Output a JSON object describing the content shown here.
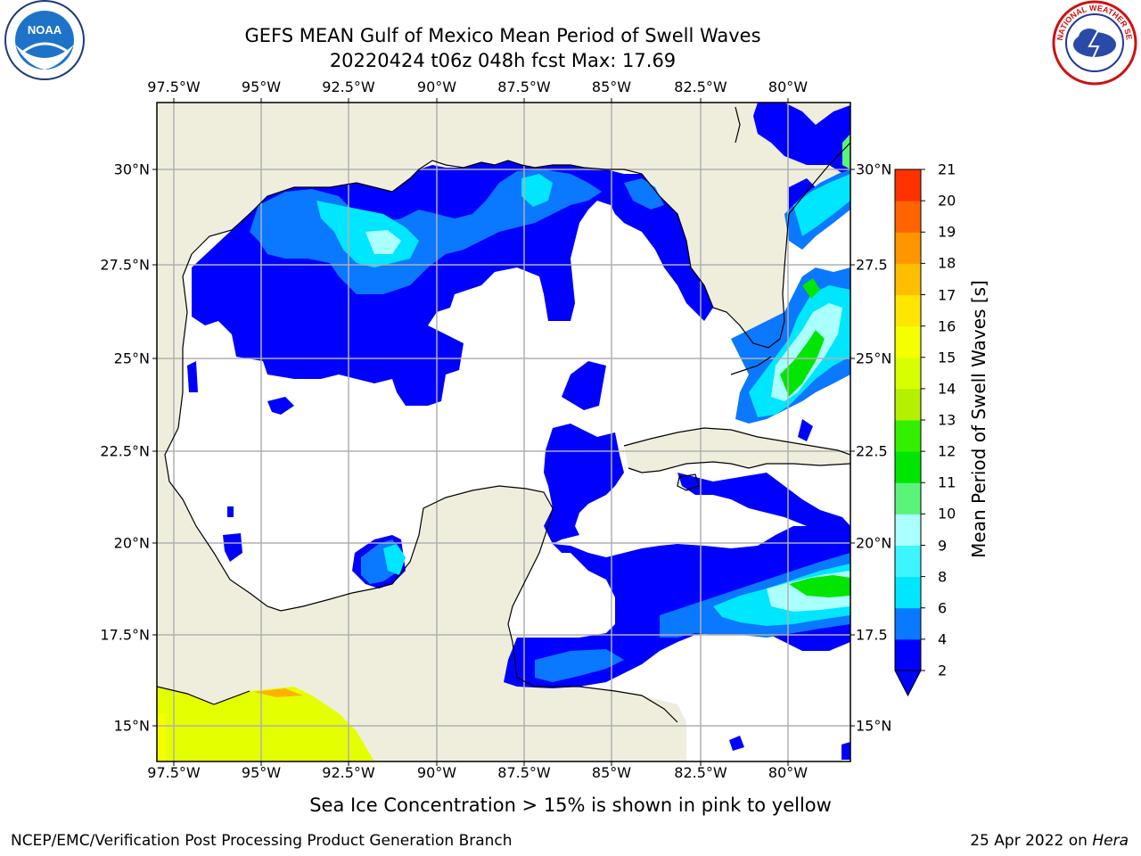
{
  "header": {
    "title": "GEFS MEAN Gulf of Mexico Mean Period of Swell Waves",
    "subtitle": "20220424 t06z 048h fcst   Max: 17.69"
  },
  "map": {
    "lon_labels": [
      "97.5°W",
      "95°W",
      "92.5°W",
      "90°W",
      "87.5°W",
      "85°W",
      "82.5°W",
      "80°W"
    ],
    "lat_labels": [
      "30°N",
      "27.5°N",
      "25°N",
      "22.5°N",
      "20°N",
      "17.5°N",
      "15°N"
    ],
    "lat_labels_right": [
      "30°N",
      "27.5",
      "25°N",
      "22.5",
      "20°N",
      "17.5",
      "15°N"
    ],
    "colors": {
      "land": "#efeedd",
      "ocean": "#ffffff",
      "grid": "#b0b0b0",
      "coast": "#000000"
    }
  },
  "colorbar": {
    "label": "Mean Period of Swell Waves [s]",
    "ticks": [
      "2",
      "4",
      "6",
      "8",
      "9",
      "10",
      "11",
      "12",
      "13",
      "14",
      "15",
      "16",
      "17",
      "18",
      "19",
      "20",
      "21"
    ],
    "colors": [
      "#0000ff",
      "#0a78ff",
      "#00e6ff",
      "#3cf5ff",
      "#aaffff",
      "#5af578",
      "#00e600",
      "#32f000",
      "#b4f000",
      "#d7ff00",
      "#f5ff00",
      "#ffe600",
      "#ffbe00",
      "#ff9600",
      "#ff6400",
      "#ff3200"
    ]
  },
  "notes": {
    "ice": "Sea Ice Concentration > 15% is shown in pink to yellow"
  },
  "footer": {
    "left": "NCEP/EMC/Verification Post Processing Product Generation Branch",
    "right_prefix": "25 Apr 2022 on ",
    "right_host": "Hera"
  },
  "logos": {
    "left": "NOAA",
    "right_text": "NATIONAL WEATHER SERVICE"
  }
}
